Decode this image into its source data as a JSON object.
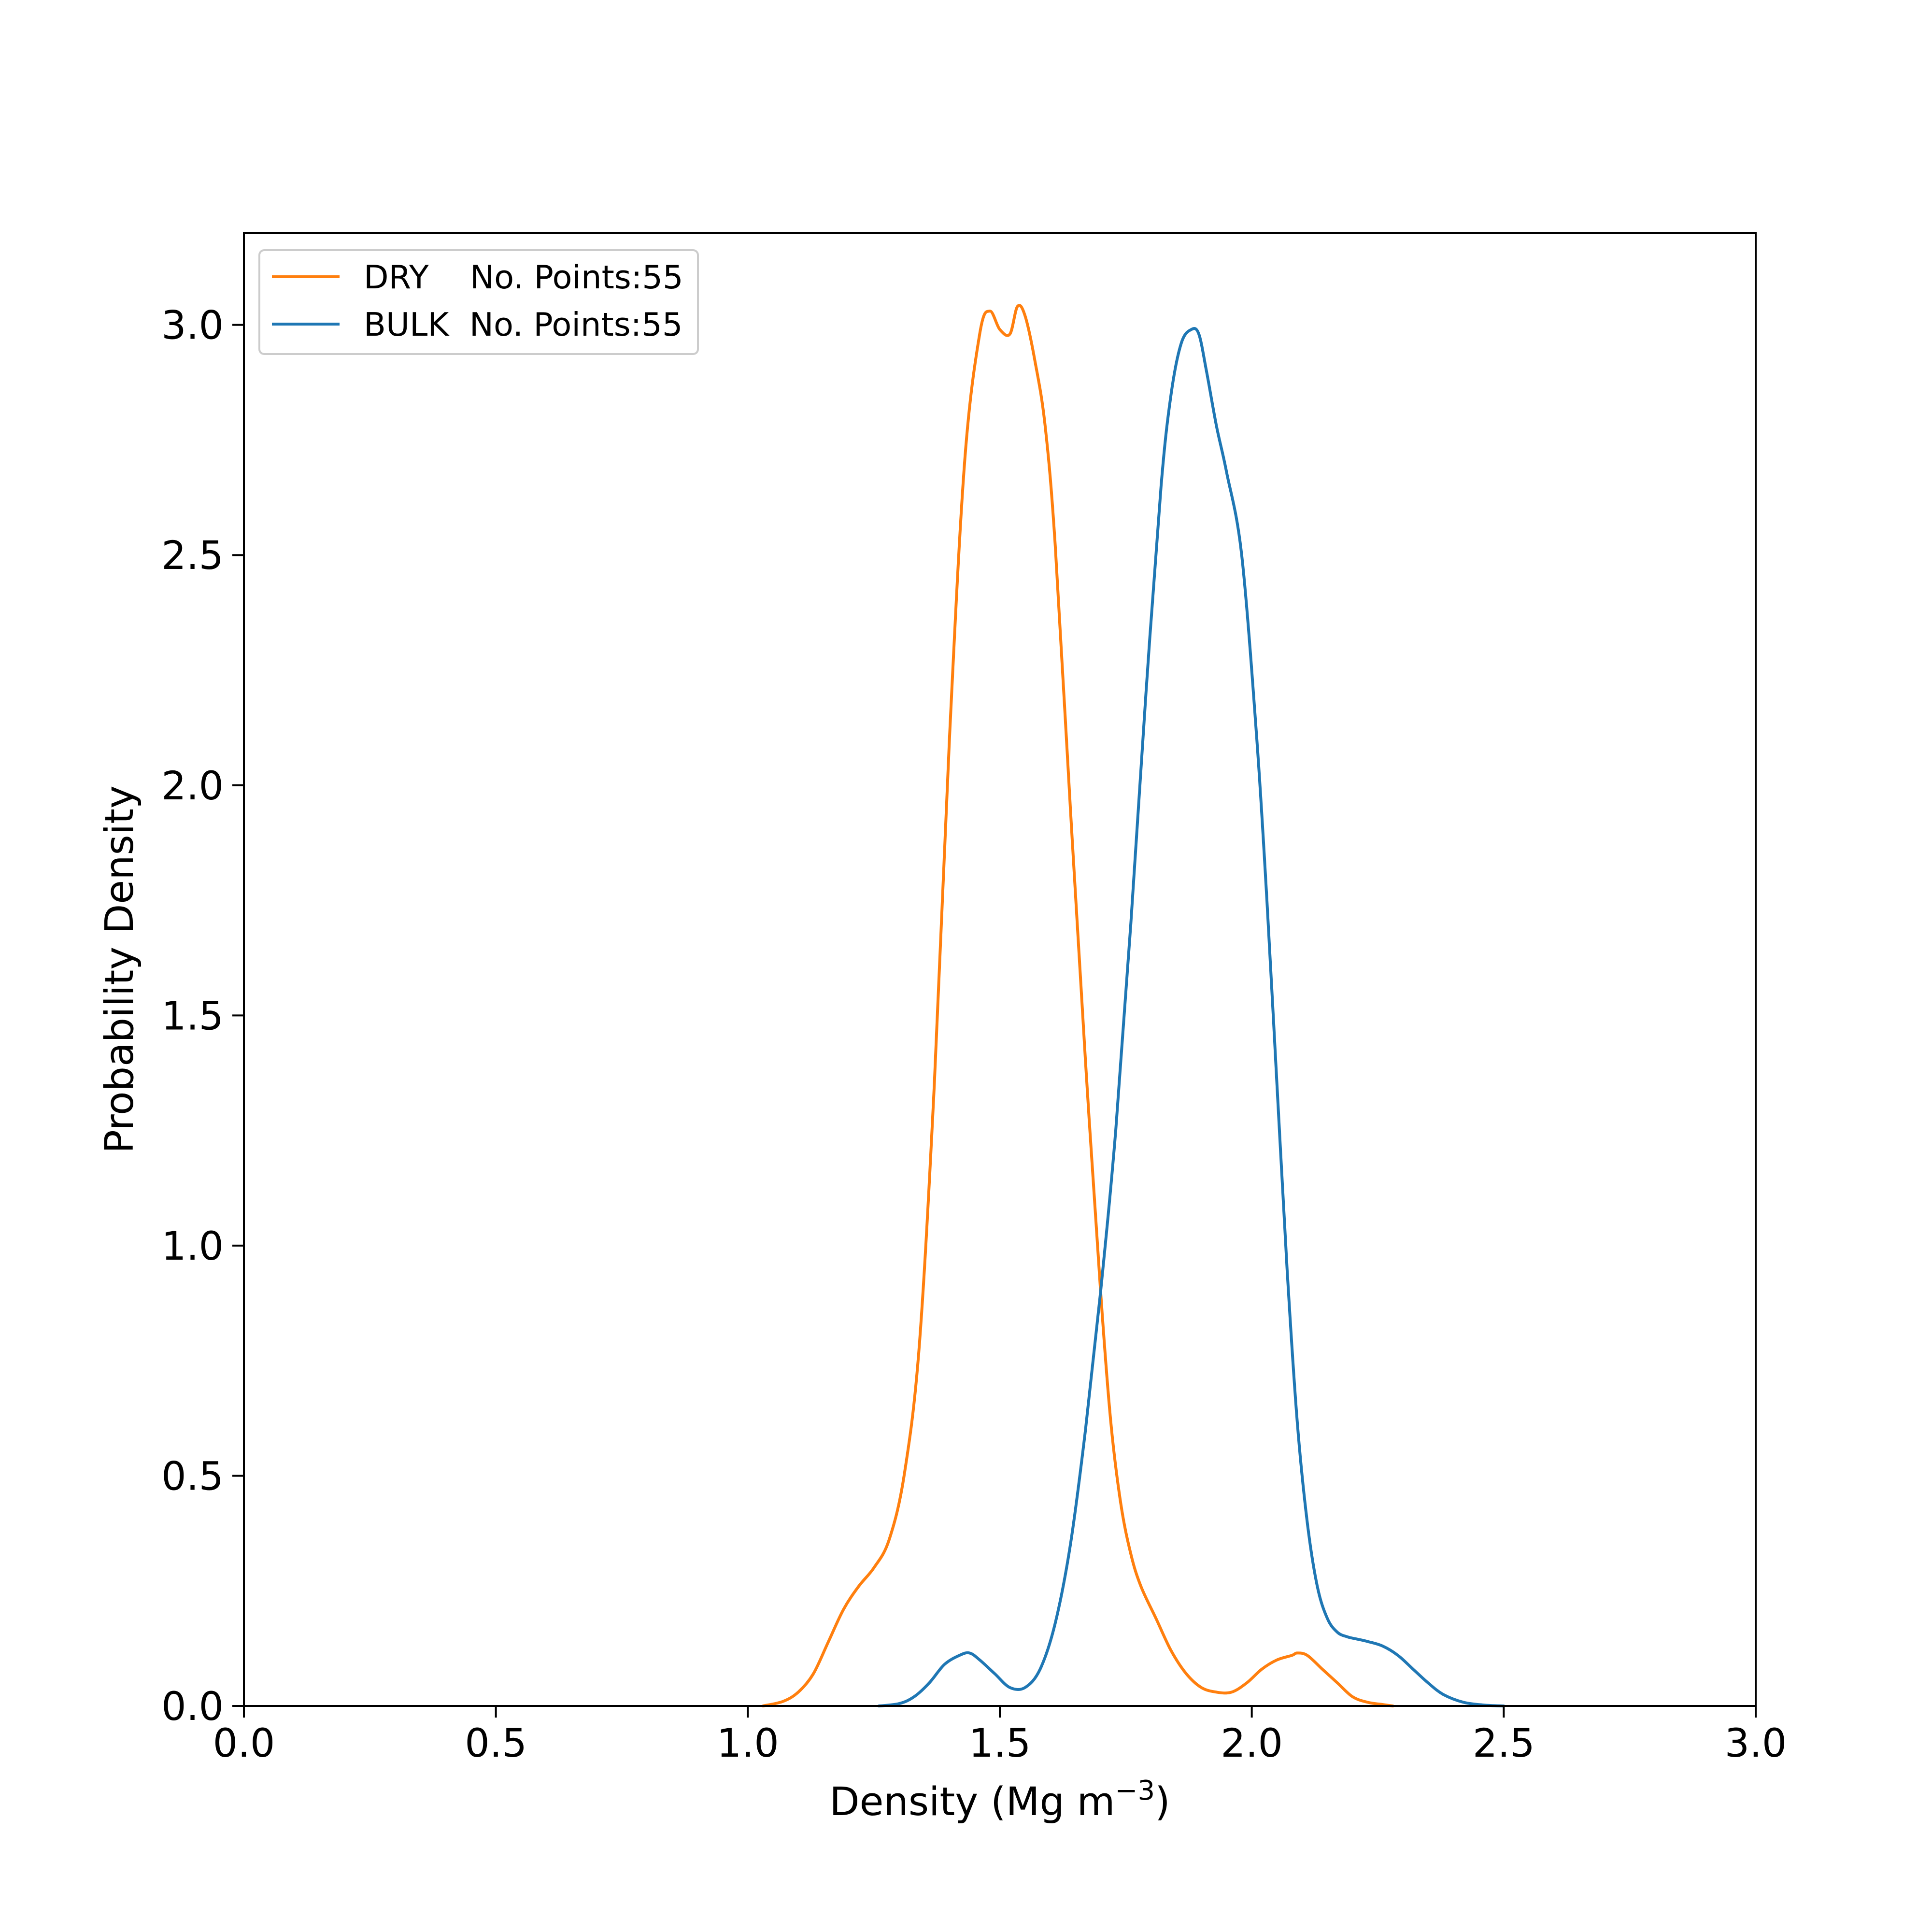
{
  "chart_data": {
    "type": "line",
    "title": "",
    "xlabel": "Density (Mg m",
    "xlabel_sup": "−3",
    "xlabel_close": ")",
    "ylabel": "Probability Density",
    "xlim": [
      0.0,
      3.0
    ],
    "ylim": [
      0.0,
      3.2
    ],
    "x_ticks": [
      0.0,
      0.5,
      1.0,
      1.5,
      2.0,
      2.5,
      3.0
    ],
    "x_tick_labels": [
      "0.0",
      "0.5",
      "1.0",
      "1.5",
      "2.0",
      "2.5",
      "3.0"
    ],
    "y_ticks": [
      0.0,
      0.5,
      1.0,
      1.5,
      2.0,
      2.5,
      3.0
    ],
    "y_tick_labels": [
      "0.0",
      "0.5",
      "1.0",
      "1.5",
      "2.0",
      "2.5",
      "3.0"
    ],
    "grid": false,
    "legend_position": "top-left",
    "series": [
      {
        "name": "DRY",
        "legend_label": "DRY    No. Points:55",
        "color": "#ff7f0e",
        "x": [
          1.03,
          1.07,
          1.1,
          1.13,
          1.16,
          1.19,
          1.22,
          1.25,
          1.28,
          1.31,
          1.34,
          1.37,
          1.4,
          1.43,
          1.46,
          1.48,
          1.5,
          1.52,
          1.535,
          1.55,
          1.57,
          1.59,
          1.61,
          1.64,
          1.67,
          1.7,
          1.72,
          1.74,
          1.76,
          1.78,
          1.81,
          1.84,
          1.87,
          1.9,
          1.93,
          1.96,
          1.99,
          2.02,
          2.05,
          2.08,
          2.09,
          2.11,
          2.14,
          2.17,
          2.2,
          2.23,
          2.26,
          2.28
        ],
        "y": [
          0.0,
          0.01,
          0.03,
          0.07,
          0.14,
          0.21,
          0.26,
          0.3,
          0.36,
          0.5,
          0.78,
          1.35,
          2.1,
          2.7,
          2.98,
          3.03,
          2.99,
          2.98,
          3.04,
          3.02,
          2.92,
          2.78,
          2.52,
          1.95,
          1.4,
          0.9,
          0.62,
          0.44,
          0.33,
          0.26,
          0.19,
          0.12,
          0.07,
          0.04,
          0.03,
          0.03,
          0.05,
          0.08,
          0.1,
          0.11,
          0.115,
          0.11,
          0.08,
          0.05,
          0.02,
          0.008,
          0.003,
          0.0
        ]
      },
      {
        "name": "BULK",
        "legend_label": "BULK  No. Points:55",
        "color": "#1f77b4",
        "x": [
          1.26,
          1.3,
          1.33,
          1.36,
          1.39,
          1.42,
          1.44,
          1.46,
          1.49,
          1.52,
          1.55,
          1.58,
          1.61,
          1.64,
          1.67,
          1.7,
          1.73,
          1.76,
          1.79,
          1.82,
          1.84,
          1.86,
          1.88,
          1.895,
          1.91,
          1.93,
          1.95,
          1.98,
          2.01,
          2.03,
          2.05,
          2.07,
          2.09,
          2.11,
          2.13,
          2.15,
          2.17,
          2.19,
          2.21,
          2.23,
          2.26,
          2.29,
          2.32,
          2.35,
          2.38,
          2.42,
          2.46,
          2.5
        ],
        "y": [
          0.0,
          0.005,
          0.02,
          0.05,
          0.09,
          0.11,
          0.115,
          0.1,
          0.07,
          0.04,
          0.04,
          0.08,
          0.18,
          0.35,
          0.6,
          0.9,
          1.25,
          1.7,
          2.2,
          2.65,
          2.85,
          2.96,
          2.99,
          2.98,
          2.9,
          2.78,
          2.68,
          2.5,
          2.1,
          1.75,
          1.35,
          0.95,
          0.62,
          0.4,
          0.26,
          0.19,
          0.16,
          0.15,
          0.145,
          0.14,
          0.13,
          0.11,
          0.08,
          0.05,
          0.025,
          0.008,
          0.002,
          0.0
        ]
      }
    ]
  }
}
